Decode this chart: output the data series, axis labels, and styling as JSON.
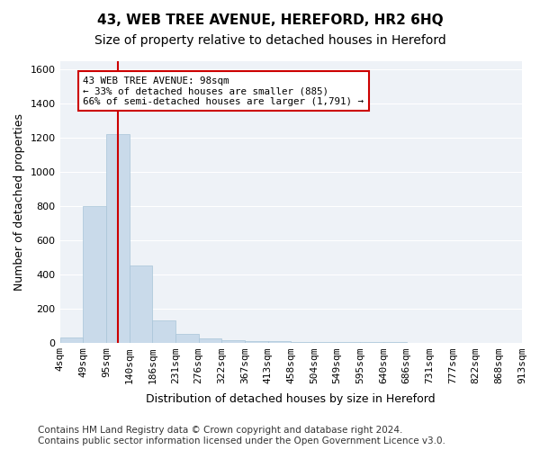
{
  "title": "43, WEB TREE AVENUE, HEREFORD, HR2 6HQ",
  "subtitle": "Size of property relative to detached houses in Hereford",
  "xlabel": "Distribution of detached houses by size in Hereford",
  "ylabel": "Number of detached properties",
  "bin_labels": [
    "4sqm",
    "49sqm",
    "95sqm",
    "140sqm",
    "186sqm",
    "231sqm",
    "276sqm",
    "322sqm",
    "367sqm",
    "413sqm",
    "458sqm",
    "504sqm",
    "549sqm",
    "595sqm",
    "640sqm",
    "686sqm",
    "731sqm",
    "777sqm",
    "822sqm",
    "868sqm",
    "913sqm"
  ],
  "values": [
    30,
    800,
    1220,
    450,
    130,
    50,
    25,
    15,
    10,
    8,
    5,
    3,
    2,
    1,
    1,
    0,
    0,
    0,
    0,
    0
  ],
  "bar_color": "#c9daea",
  "bar_edge_color": "#a8c4d8",
  "vline_x_index": 2,
  "vline_color": "#cc0000",
  "annotation_text": "43 WEB TREE AVENUE: 98sqm\n← 33% of detached houses are smaller (885)\n66% of semi-detached houses are larger (1,791) →",
  "annotation_box_facecolor": "#ffffff",
  "annotation_box_edgecolor": "#cc0000",
  "ylim": [
    0,
    1650
  ],
  "yticks": [
    0,
    200,
    400,
    600,
    800,
    1000,
    1200,
    1400,
    1600
  ],
  "plot_bg_color": "#eef2f7",
  "grid_color": "#ffffff",
  "footer": "Contains HM Land Registry data © Crown copyright and database right 2024.\nContains public sector information licensed under the Open Government Licence v3.0.",
  "title_fontsize": 11,
  "subtitle_fontsize": 10,
  "axis_label_fontsize": 9,
  "tick_fontsize": 8,
  "footer_fontsize": 7.5
}
